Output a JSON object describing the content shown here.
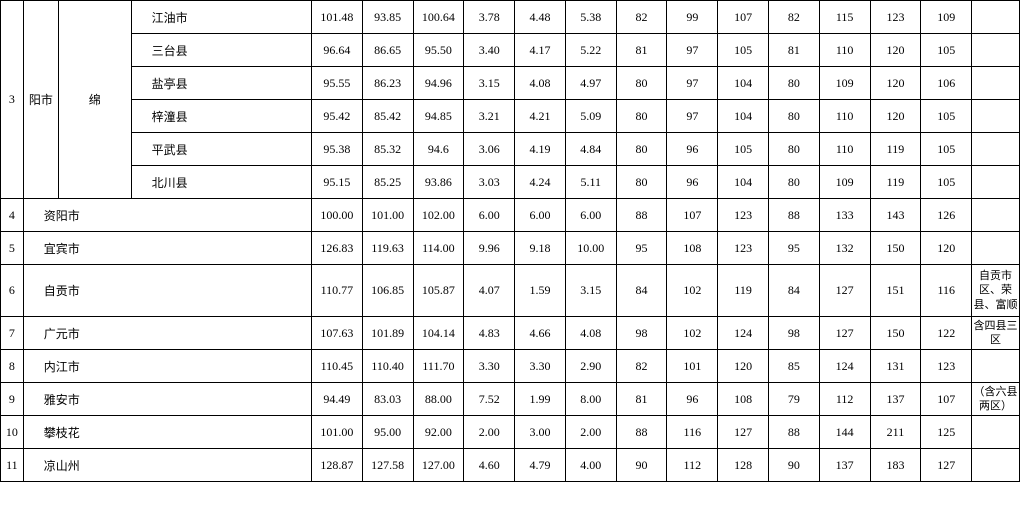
{
  "table": {
    "mianyang_idx": "3",
    "mianyang_city1": "阳市",
    "mianyang_city2": "绵",
    "counties": {
      "jiangyou": {
        "name": "江油市",
        "v": [
          "101.48",
          "93.85",
          "100.64",
          "3.78",
          "4.48",
          "5.38",
          "82",
          "99",
          "107",
          "82",
          "115",
          "123",
          "109"
        ]
      },
      "santai": {
        "name": "三台县",
        "v": [
          "96.64",
          "86.65",
          "95.50",
          "3.40",
          "4.17",
          "5.22",
          "81",
          "97",
          "105",
          "81",
          "110",
          "120",
          "105"
        ]
      },
      "yanting": {
        "name": "盐亭县",
        "v": [
          "95.55",
          "86.23",
          "94.96",
          "3.15",
          "4.08",
          "4.97",
          "80",
          "97",
          "104",
          "80",
          "109",
          "120",
          "106"
        ]
      },
      "zitong": {
        "name": "梓潼县",
        "v": [
          "95.42",
          "85.42",
          "94.85",
          "3.21",
          "4.21",
          "5.09",
          "80",
          "97",
          "104",
          "80",
          "110",
          "120",
          "105"
        ]
      },
      "pingwu": {
        "name": "平武县",
        "v": [
          "95.38",
          "85.32",
          "94.6",
          "3.06",
          "4.19",
          "4.84",
          "80",
          "96",
          "105",
          "80",
          "110",
          "119",
          "105"
        ]
      },
      "beichuan": {
        "name": "北川县",
        "v": [
          "95.15",
          "85.25",
          "93.86",
          "3.03",
          "4.24",
          "5.11",
          "80",
          "96",
          "104",
          "80",
          "109",
          "119",
          "105"
        ]
      }
    },
    "rows": {
      "r4": {
        "idx": "4",
        "city": "资阳市",
        "v": [
          "100.00",
          "101.00",
          "102.00",
          "6.00",
          "6.00",
          "6.00",
          "88",
          "107",
          "123",
          "88",
          "133",
          "143",
          "126"
        ],
        "note": ""
      },
      "r5": {
        "idx": "5",
        "city": "宜宾市",
        "v": [
          "126.83",
          "119.63",
          "114.00",
          "9.96",
          "9.18",
          "10.00",
          "95",
          "108",
          "123",
          "95",
          "132",
          "150",
          "120"
        ],
        "note": ""
      },
      "r6": {
        "idx": "6",
        "city": "自贡市",
        "v": [
          "110.77",
          "106.85",
          "105.87",
          "4.07",
          "1.59",
          "3.15",
          "84",
          "102",
          "119",
          "84",
          "127",
          "151",
          "116"
        ],
        "note": "自贡市区、荣县、富顺"
      },
      "r7": {
        "idx": "7",
        "city": "广元市",
        "v": [
          "107.63",
          "101.89",
          "104.14",
          "4.83",
          "4.66",
          "4.08",
          "98",
          "102",
          "124",
          "98",
          "127",
          "150",
          "122"
        ],
        "note": "含四县三区"
      },
      "r8": {
        "idx": "8",
        "city": "内江市",
        "v": [
          "110.45",
          "110.40",
          "111.70",
          "3.30",
          "3.30",
          "2.90",
          "82",
          "101",
          "120",
          "85",
          "124",
          "131",
          "123"
        ],
        "note": ""
      },
      "r9": {
        "idx": "9",
        "city": "雅安市",
        "v": [
          "94.49",
          "83.03",
          "88.00",
          "7.52",
          "1.99",
          "8.00",
          "81",
          "96",
          "108",
          "79",
          "112",
          "137",
          "107"
        ],
        "note": "（含六县两区）"
      },
      "r10": {
        "idx": "10",
        "city": "攀枝花",
        "v": [
          "101.00",
          "95.00",
          "92.00",
          "2.00",
          "3.00",
          "2.00",
          "88",
          "116",
          "127",
          "88",
          "144",
          "211",
          "125"
        ],
        "note": ""
      },
      "r11": {
        "idx": "11",
        "city": "凉山州",
        "v": [
          "128.87",
          "127.58",
          "127.00",
          "4.60",
          "4.79",
          "4.00",
          "90",
          "112",
          "128",
          "90",
          "137",
          "183",
          "127"
        ],
        "note": ""
      }
    }
  }
}
